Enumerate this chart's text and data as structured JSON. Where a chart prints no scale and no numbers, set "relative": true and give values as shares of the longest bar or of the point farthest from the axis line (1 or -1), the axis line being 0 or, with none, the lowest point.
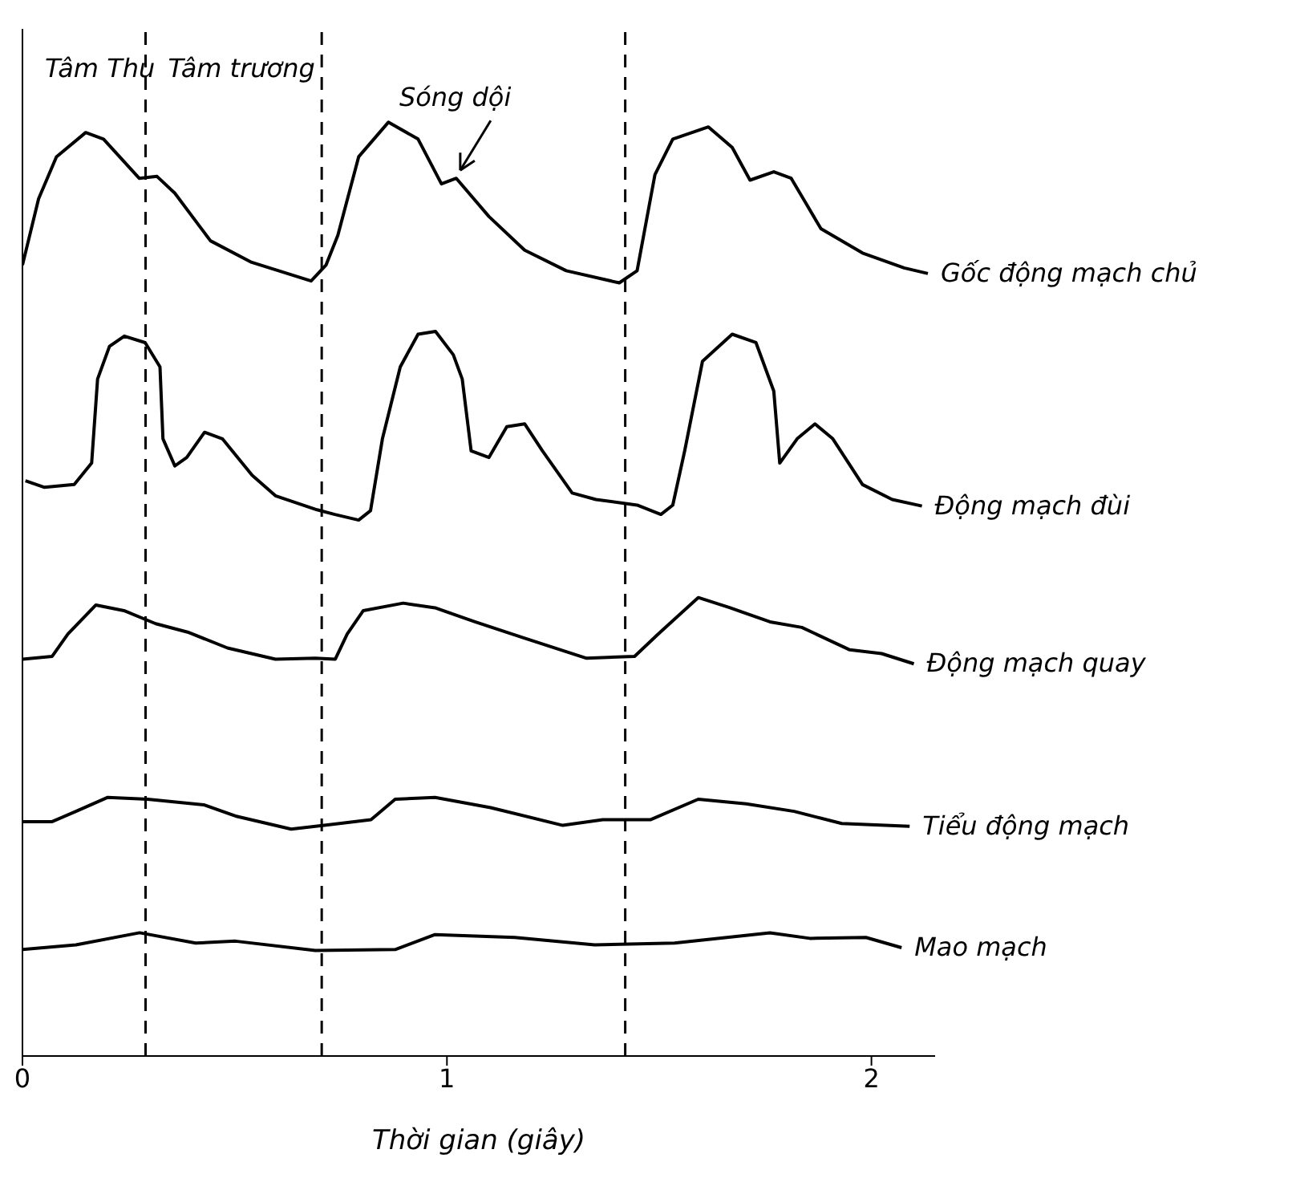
{
  "chart_data": {
    "type": "line",
    "relative": true,
    "xlabel": "Thời gian      (giây)",
    "xlim": [
      0,
      2.15
    ],
    "xticks": [
      0,
      1,
      2
    ],
    "marker": "none",
    "line_style": "solid",
    "series": [
      {
        "name": "Gốc động mạch chủ",
        "color": "#000000",
        "x": [
          0,
          0.038,
          0.08,
          0.149,
          0.191,
          0.275,
          0.317,
          0.359,
          0.443,
          0.54,
          0.68,
          0.715,
          0.743,
          0.792,
          0.862,
          0.932,
          0.987,
          1.022,
          1.099,
          1.183,
          1.281,
          1.406,
          1.448,
          1.49,
          1.532,
          1.616,
          1.672,
          1.714,
          1.77,
          1.811,
          1.881,
          1.979,
          2.077,
          2.133
        ],
        "values": [
          0.847,
          0.918,
          0.963,
          0.989,
          0.982,
          0.94,
          0.942,
          0.924,
          0.873,
          0.85,
          0.83,
          0.847,
          0.879,
          0.963,
          1.0,
          0.982,
          0.934,
          0.94,
          0.899,
          0.863,
          0.841,
          0.828,
          0.841,
          0.944,
          0.982,
          0.995,
          0.973,
          0.938,
          0.947,
          0.94,
          0.886,
          0.86,
          0.844,
          0.838
        ]
      },
      {
        "name": "Động mạch đùi",
        "color": "#000000",
        "x": [
          0.007,
          0.052,
          0.122,
          0.163,
          0.177,
          0.205,
          0.24,
          0.289,
          0.324,
          0.331,
          0.359,
          0.387,
          0.429,
          0.471,
          0.541,
          0.596,
          0.694,
          0.736,
          0.792,
          0.82,
          0.848,
          0.89,
          0.932,
          0.973,
          1.015,
          1.036,
          1.057,
          1.099,
          1.141,
          1.183,
          1.225,
          1.295,
          1.351,
          1.448,
          1.504,
          1.532,
          1.56,
          1.602,
          1.672,
          1.728,
          1.77,
          1.784,
          1.825,
          1.867,
          1.909,
          1.979,
          2.049,
          2.119
        ],
        "values": [
          0.616,
          0.609,
          0.612,
          0.635,
          0.725,
          0.76,
          0.771,
          0.764,
          0.738,
          0.661,
          0.632,
          0.641,
          0.668,
          0.661,
          0.622,
          0.6,
          0.585,
          0.58,
          0.574,
          0.584,
          0.661,
          0.738,
          0.773,
          0.776,
          0.751,
          0.725,
          0.648,
          0.641,
          0.674,
          0.677,
          0.648,
          0.603,
          0.596,
          0.59,
          0.58,
          0.59,
          0.648,
          0.744,
          0.773,
          0.764,
          0.712,
          0.635,
          0.661,
          0.677,
          0.661,
          0.612,
          0.596,
          0.589
        ]
      },
      {
        "name": "Động mạch quay",
        "color": "#000000",
        "x": [
          0,
          0.07,
          0.107,
          0.173,
          0.239,
          0.314,
          0.389,
          0.483,
          0.596,
          0.69,
          0.737,
          0.765,
          0.803,
          0.897,
          0.972,
          1.066,
          1.179,
          1.329,
          1.442,
          1.498,
          1.592,
          1.667,
          1.761,
          1.836,
          1.949,
          2.024,
          2.1
        ],
        "values": [
          0.425,
          0.428,
          0.452,
          0.483,
          0.477,
          0.463,
          0.454,
          0.437,
          0.425,
          0.426,
          0.425,
          0.452,
          0.477,
          0.485,
          0.48,
          0.465,
          0.448,
          0.426,
          0.428,
          0.452,
          0.491,
          0.48,
          0.465,
          0.459,
          0.435,
          0.431,
          0.42
        ]
      },
      {
        "name": "Tiểu động mạch",
        "color": "#000000",
        "x": [
          0,
          0.07,
          0.126,
          0.201,
          0.295,
          0.427,
          0.502,
          0.633,
          0.727,
          0.821,
          0.878,
          0.972,
          1.103,
          1.273,
          1.367,
          1.479,
          1.592,
          1.705,
          1.818,
          1.93,
          2.09
        ],
        "values": [
          0.251,
          0.251,
          0.262,
          0.277,
          0.275,
          0.269,
          0.257,
          0.243,
          0.248,
          0.253,
          0.275,
          0.277,
          0.266,
          0.247,
          0.253,
          0.253,
          0.275,
          0.27,
          0.262,
          0.249,
          0.246
        ]
      },
      {
        "name": "Mao mạch",
        "color": "#000000",
        "x": [
          0,
          0.126,
          0.276,
          0.408,
          0.502,
          0.69,
          0.878,
          0.972,
          1.16,
          1.348,
          1.536,
          1.761,
          1.855,
          1.987,
          2.071
        ],
        "values": [
          0.114,
          0.119,
          0.132,
          0.121,
          0.123,
          0.113,
          0.114,
          0.13,
          0.127,
          0.119,
          0.121,
          0.132,
          0.126,
          0.127,
          0.116
        ]
      }
    ],
    "ref_lines": [
      {
        "axis": "x",
        "value": 0.29,
        "color": "#000000",
        "line_style": "dashed"
      },
      {
        "axis": "x",
        "value": 0.705,
        "color": "#000000",
        "line_style": "dashed"
      },
      {
        "axis": "x",
        "value": 1.42,
        "color": "#000000",
        "line_style": "dashed"
      }
    ],
    "annotations": [
      "Tâm Thu",
      "Tâm trương",
      {
        "text": "Sóng dội",
        "x": 1.02,
        "y": 0.94
      }
    ]
  }
}
